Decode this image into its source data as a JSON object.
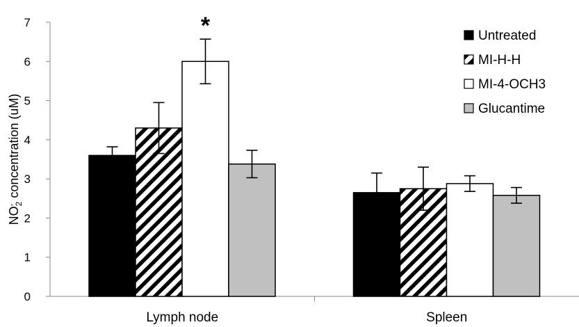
{
  "chart_data": {
    "type": "bar",
    "title": "",
    "xlabel": "",
    "ylabel": {
      "prefix": "NO",
      "superscript": "-",
      "subscript": "2",
      "suffix": " concentration (uM)"
    },
    "ylim": [
      0,
      7
    ],
    "yticks": [
      0,
      1,
      2,
      3,
      4,
      5,
      6,
      7
    ],
    "grid": false,
    "legend_position": "top-right",
    "categories": [
      "Lymph node",
      "Spleen"
    ],
    "series": [
      {
        "name": "Untreated",
        "fill": "solid-black",
        "color": "#000000",
        "values": [
          3.6,
          2.65
        ],
        "errors": [
          0.22,
          0.5
        ]
      },
      {
        "name": "MI-H-H",
        "fill": "diagonal-stripes",
        "color": "#000000",
        "values": [
          4.3,
          2.75
        ],
        "errors": [
          0.65,
          0.55
        ]
      },
      {
        "name": "MI-4-OCH3",
        "fill": "white",
        "color": "#ffffff",
        "values": [
          6.0,
          2.88
        ],
        "errors": [
          0.57,
          0.2
        ]
      },
      {
        "name": "Glucantime",
        "fill": "gray",
        "color": "#c0c0c0",
        "values": [
          3.38,
          2.58
        ],
        "errors": [
          0.35,
          0.2
        ]
      }
    ],
    "annotations": [
      {
        "text": "*",
        "category": "Lymph node",
        "series": "MI-4-OCH3"
      }
    ]
  }
}
